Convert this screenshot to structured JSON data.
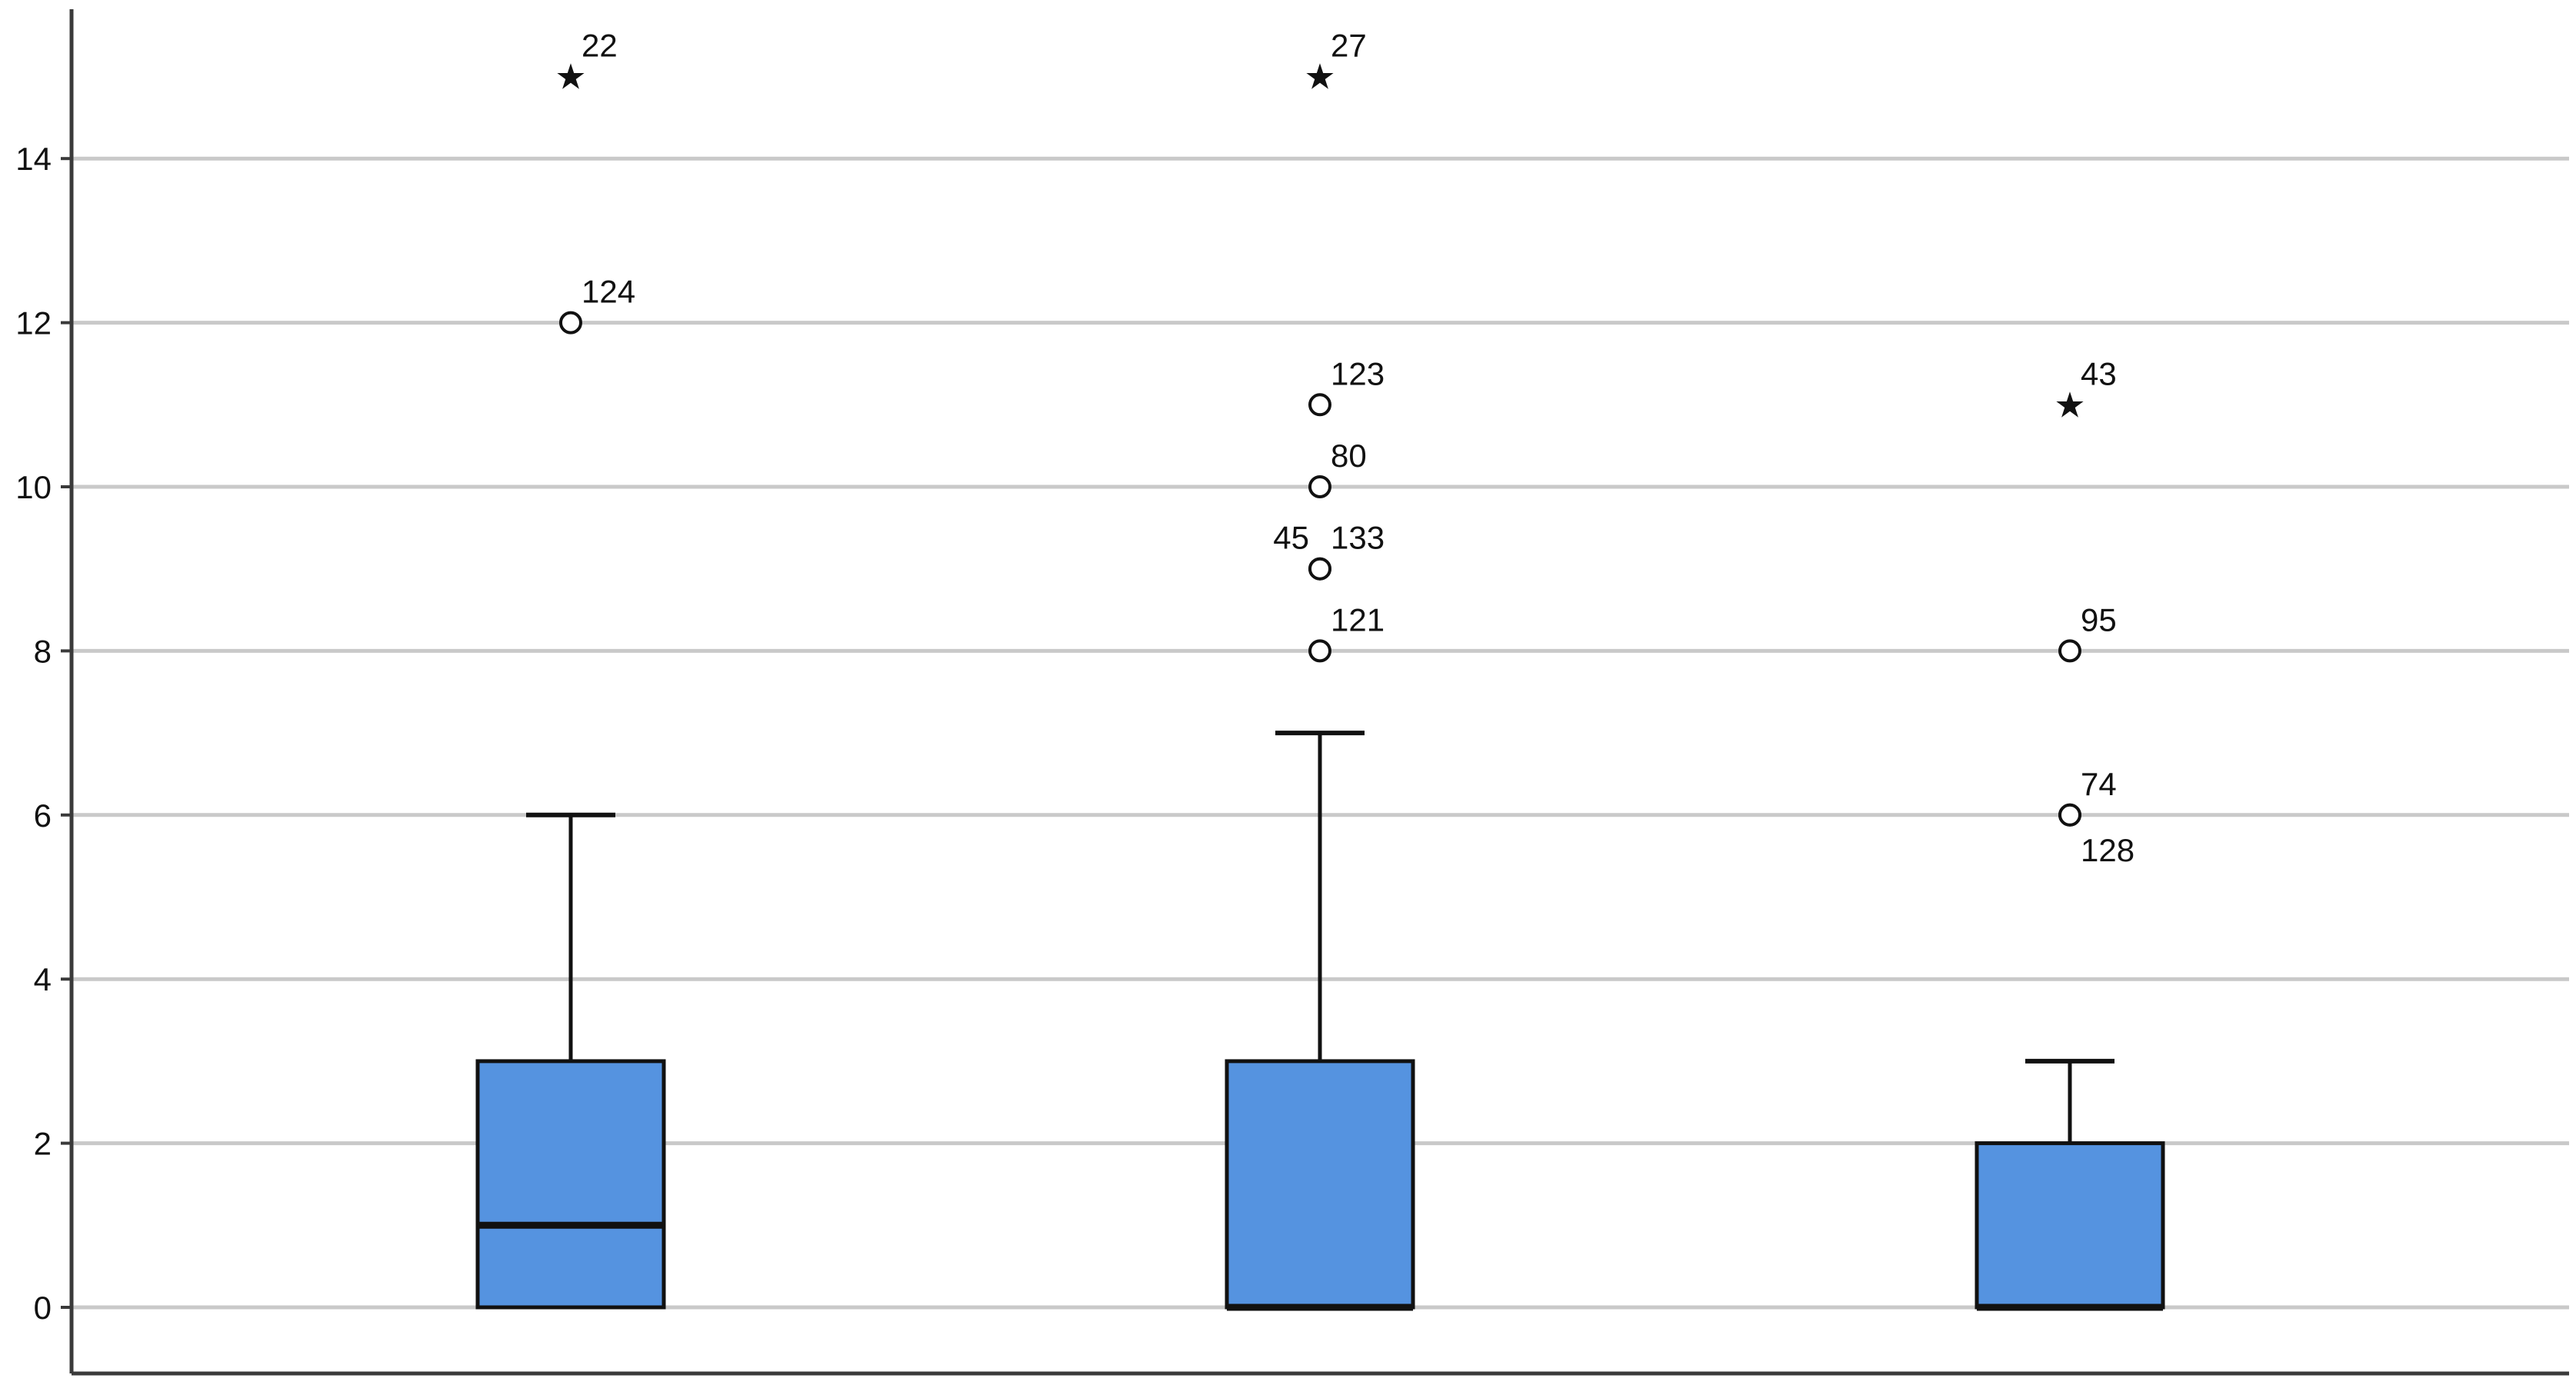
{
  "colors": {
    "box_fill": "#5593e0",
    "box_stroke": "#111111",
    "gridline": "#c9c9c9",
    "axis": "#3a3a3a",
    "background": "#ffffff"
  },
  "chart_data": {
    "type": "box",
    "title": "",
    "xlabel": "",
    "ylabel": "",
    "categories": [
      "",
      "",
      ""
    ],
    "ylim": [
      0,
      15
    ],
    "yticks": [
      0,
      2,
      4,
      6,
      8,
      10,
      12,
      14
    ],
    "grid": true,
    "legend": "none",
    "boxes": [
      {
        "q1": 0,
        "median": 1,
        "q3": 3,
        "whisker_low": 0,
        "whisker_high": 6,
        "outliers": [
          {
            "value": 15,
            "label": "22",
            "marker": "star",
            "label_pos": "above-right"
          },
          {
            "value": 12,
            "label": "124",
            "marker": "circle",
            "label_pos": "above-right"
          }
        ]
      },
      {
        "q1": 0,
        "median": 0,
        "q3": 3,
        "whisker_low": 0,
        "whisker_high": 7,
        "outliers": [
          {
            "value": 15,
            "label": "27",
            "marker": "star",
            "label_pos": "above-right"
          },
          {
            "value": 11,
            "label": "123",
            "marker": "circle",
            "label_pos": "above-right"
          },
          {
            "value": 10,
            "label": "80",
            "marker": "circle",
            "label_pos": "above-right"
          },
          {
            "value": 9,
            "label": "45",
            "marker": "circle",
            "label_pos": "above-left"
          },
          {
            "value": 9,
            "label": "133",
            "marker": "circle",
            "label_pos": "above-right"
          },
          {
            "value": 8,
            "label": "121",
            "marker": "circle",
            "label_pos": "above-right"
          }
        ]
      },
      {
        "q1": 0,
        "median": 0,
        "q3": 2,
        "whisker_low": 0,
        "whisker_high": 3,
        "outliers": [
          {
            "value": 11,
            "label": "43",
            "marker": "star",
            "label_pos": "above-right"
          },
          {
            "value": 8,
            "label": "95",
            "marker": "circle",
            "label_pos": "above-right"
          },
          {
            "value": 6,
            "label": "74",
            "marker": "circle",
            "label_pos": "above-right"
          },
          {
            "value": 6,
            "label": "128",
            "marker": "circle",
            "label_pos": "below-right"
          }
        ]
      }
    ]
  }
}
